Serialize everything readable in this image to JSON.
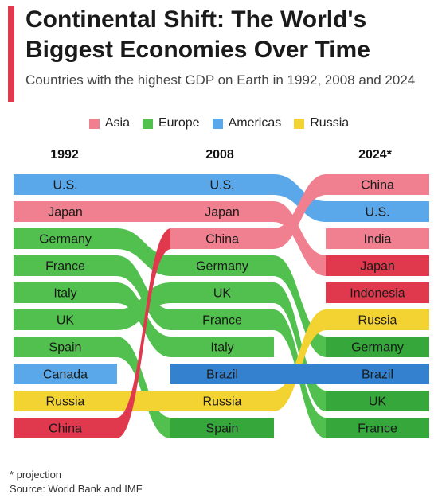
{
  "title": "Continental Shift: The World's Biggest Economies Over Time",
  "subtitle": "Countries with the highest GDP on Earth in 1992, 2008 and 2024",
  "legend": [
    {
      "name": "Asia",
      "color": "#f0808f"
    },
    {
      "name": "Europe",
      "color": "#52c04e"
    },
    {
      "name": "Americas",
      "color": "#5aa8ea"
    },
    {
      "name": "Russia",
      "color": "#f3d331"
    }
  ],
  "footnote": "* projection",
  "source": "Source: World Bank and IMF",
  "chart_data": {
    "type": "bump",
    "years": [
      "1992",
      "2008",
      "2024*"
    ],
    "rankings": [
      [
        "U.S.",
        "Japan",
        "Germany",
        "France",
        "Italy",
        "UK",
        "Spain",
        "Canada",
        "Russia",
        "China"
      ],
      [
        "U.S.",
        "Japan",
        "China",
        "Germany",
        "UK",
        "France",
        "Italy",
        "Brazil",
        "Russia",
        "Spain"
      ],
      [
        "China",
        "U.S.",
        "India",
        "Japan",
        "Indonesia",
        "Russia",
        "Germany",
        "Brazil",
        "UK",
        "France"
      ]
    ],
    "regions": {
      "U.S.": "Americas",
      "Japan": "Asia",
      "Germany": "Europe",
      "France": "Europe",
      "Italy": "Europe",
      "UK": "Europe",
      "Spain": "Europe",
      "Canada": "Americas",
      "Russia": "Russia",
      "China": "Asia",
      "Brazil": "Americas",
      "India": "Asia",
      "Indonesia": "Asia"
    },
    "region_colors": {
      "Asia": "#f0808f",
      "Europe": "#52c04e",
      "Americas": "#5aa8ea",
      "Russia": "#f3d331"
    },
    "region_colors_dark": {
      "Asia": "#e0394d",
      "Europe": "#35a73b",
      "Americas": "#3482cf",
      "Russia": "#f3d331"
    },
    "darken": [
      [
        "Russia",
        0
      ],
      [
        "China",
        0
      ],
      [
        "Spain",
        1
      ],
      [
        "Brazil",
        1
      ],
      [
        "France",
        2
      ],
      [
        "UK",
        2
      ],
      [
        "Brazil",
        2
      ],
      [
        "Indonesia",
        2
      ],
      [
        "Japan",
        2
      ],
      [
        "Germany",
        2
      ]
    ]
  }
}
